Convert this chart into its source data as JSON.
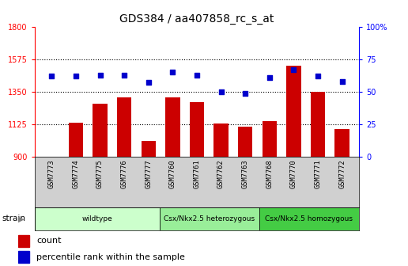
{
  "title": "GDS384 / aa407858_rc_s_at",
  "samples": [
    "GSM7773",
    "GSM7774",
    "GSM7775",
    "GSM7776",
    "GSM7777",
    "GSM7760",
    "GSM7761",
    "GSM7762",
    "GSM7763",
    "GSM7768",
    "GSM7770",
    "GSM7771",
    "GSM7772"
  ],
  "counts": [
    900,
    1135,
    1270,
    1310,
    1010,
    1310,
    1280,
    1130,
    1110,
    1145,
    1530,
    1350,
    1090
  ],
  "percentiles": [
    62,
    62,
    63,
    63,
    57,
    65,
    63,
    50,
    49,
    61,
    67,
    62,
    58
  ],
  "bar_color": "#cc0000",
  "dot_color": "#0000cc",
  "ylim_left": [
    900,
    1800
  ],
  "ylim_right": [
    0,
    100
  ],
  "yticks_left": [
    900,
    1125,
    1350,
    1575,
    1800
  ],
  "yticks_right": [
    0,
    25,
    50,
    75,
    100
  ],
  "groups": [
    {
      "label": "wildtype",
      "start": 0,
      "end": 5,
      "color": "#ccffcc"
    },
    {
      "label": "Csx/Nkx2.5 heterozygous",
      "start": 5,
      "end": 9,
      "color": "#99ee99"
    },
    {
      "label": "Csx/Nkx2.5 homozygous",
      "start": 9,
      "end": 13,
      "color": "#44cc44"
    }
  ],
  "strain_label": "strain",
  "legend_count": "count",
  "legend_percentile": "percentile rank within the sample",
  "background_color": "#d0d0d0",
  "plot_bg": "#ffffff",
  "title_fontsize": 10,
  "tick_fontsize": 7,
  "label_fontsize": 7
}
